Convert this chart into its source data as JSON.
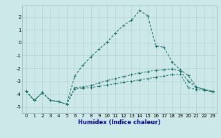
{
  "xlabel": "Humidex (Indice chaleur)",
  "background_color": "#cde8e8",
  "grid_color": "#b8d4d4",
  "line_color": "#1a6e6a",
  "x_values": [
    0,
    1,
    2,
    3,
    4,
    5,
    6,
    7,
    8,
    9,
    10,
    11,
    12,
    13,
    14,
    15,
    16,
    17,
    18,
    19,
    20,
    21,
    22,
    23
  ],
  "series1": [
    -3.8,
    -4.5,
    -3.9,
    -4.5,
    -4.6,
    -4.8,
    -3.6,
    -3.55,
    -3.5,
    -3.4,
    -3.3,
    -3.2,
    -3.1,
    -3.0,
    -2.9,
    -2.8,
    -2.7,
    -2.6,
    -2.5,
    -2.45,
    -3.5,
    -3.65,
    -3.7,
    -3.85
  ],
  "series2": [
    -3.8,
    -4.5,
    -3.9,
    -4.5,
    -4.6,
    -4.8,
    -3.5,
    -3.45,
    -3.35,
    -3.15,
    -2.95,
    -2.8,
    -2.65,
    -2.5,
    -2.35,
    -2.25,
    -2.15,
    -2.1,
    -2.05,
    -2.2,
    -3.0,
    -3.5,
    -3.65,
    -3.8
  ],
  "series3": [
    -3.8,
    -4.5,
    -3.9,
    -4.5,
    -4.6,
    -4.8,
    -2.6,
    -1.75,
    -1.1,
    -0.5,
    0.05,
    0.75,
    1.35,
    1.75,
    2.5,
    2.1,
    -0.25,
    -0.35,
    -1.5,
    -2.1,
    -2.55,
    -3.45,
    -3.65,
    -3.8
  ],
  "ylim": [
    -5.5,
    2.9
  ],
  "xlim": [
    -0.5,
    23.5
  ],
  "yticks": [
    -5,
    -4,
    -3,
    -2,
    -1,
    0,
    1,
    2
  ],
  "xticks": [
    0,
    1,
    2,
    3,
    4,
    5,
    6,
    7,
    8,
    9,
    10,
    11,
    12,
    13,
    14,
    15,
    16,
    17,
    18,
    19,
    20,
    21,
    22,
    23
  ],
  "xlabel_color": "#00008b",
  "tick_fontsize": 5.0,
  "xlabel_fontsize": 6.0
}
